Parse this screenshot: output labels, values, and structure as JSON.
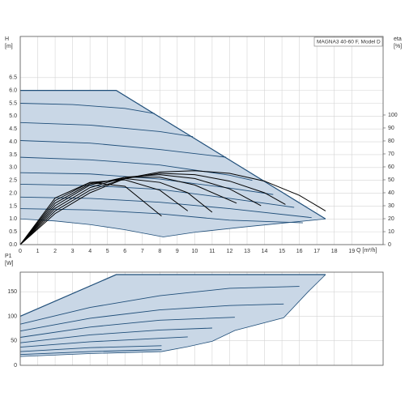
{
  "chart_data": [
    {
      "type": "line",
      "title": "MAGNA3 40-60 F, Model D",
      "y_label": "H",
      "y_unit": "[m]",
      "x_label": "Q [m³/h]",
      "y2_label": "eta",
      "y2_unit": "[%]",
      "xlim": [
        0,
        20.8
      ],
      "ylim": [
        0,
        8.1
      ],
      "y2lim": [
        0,
        160.6
      ],
      "xticks": [
        0,
        1,
        2,
        3,
        4,
        5,
        6,
        7,
        8,
        9,
        10,
        11,
        12,
        13,
        14,
        15,
        16,
        17,
        18,
        19
      ],
      "yticks": [
        {
          "value": 0,
          "label": "0.0"
        },
        {
          "value": 0.5,
          "label": "0.5"
        },
        {
          "value": 1,
          "label": "1.0"
        },
        {
          "value": 1.5,
          "label": "1.5"
        },
        {
          "value": 2,
          "label": "2.0"
        },
        {
          "value": 2.5,
          "label": "2.5"
        },
        {
          "value": 3,
          "label": "3.0"
        },
        {
          "value": 3.5,
          "label": "3.5"
        },
        {
          "value": 4,
          "label": "4.0"
        },
        {
          "value": 4.5,
          "label": "4.5"
        },
        {
          "value": 5,
          "label": "5.0"
        },
        {
          "value": 5.5,
          "label": "5.5"
        },
        {
          "value": 6,
          "label": "6.0"
        },
        {
          "value": 6.5,
          "label": "6.5"
        }
      ],
      "y2ticks": [
        0,
        10,
        20,
        30,
        40,
        50,
        60,
        70,
        80,
        90,
        100
      ],
      "grid": true,
      "xtick_labels": true,
      "fill": "#c9d7e6",
      "line_color": "#1f4e79",
      "area": {
        "upper": {
          "x": [
            0,
            5.5,
            17.5
          ],
          "values": [
            6,
            6,
            1
          ]
        },
        "lower": {
          "x": [
            0,
            2,
            4,
            6,
            8.2,
            10,
            13,
            16,
            17.5
          ],
          "values": [
            1,
            0.92,
            0.78,
            0.58,
            0.3,
            0.48,
            0.7,
            0.9,
            1
          ]
        }
      },
      "series": [
        {
          "color": "#1f4e79",
          "x": [
            0,
            3,
            6,
            7.7
          ],
          "values": [
            5.5,
            5.45,
            5.3,
            5.1
          ]
        },
        {
          "color": "#1f4e79",
          "x": [
            0,
            4,
            8,
            9.9
          ],
          "values": [
            4.75,
            4.65,
            4.4,
            4.2
          ]
        },
        {
          "color": "#1f4e79",
          "x": [
            0,
            4,
            8,
            11.8
          ],
          "values": [
            4.05,
            3.95,
            3.7,
            3.4
          ]
        },
        {
          "color": "#1f4e79",
          "x": [
            0,
            4,
            8,
            12,
            13.3
          ],
          "values": [
            3.4,
            3.3,
            3.1,
            2.7,
            2.5
          ]
        },
        {
          "color": "#1f4e79",
          "x": [
            0,
            4,
            8,
            12,
            14.5
          ],
          "values": [
            2.8,
            2.75,
            2.55,
            2.2,
            1.95
          ]
        },
        {
          "color": "#1f4e79",
          "x": [
            0,
            4,
            8,
            12,
            15.7
          ],
          "values": [
            2.35,
            2.3,
            2.15,
            1.8,
            1.45
          ]
        },
        {
          "color": "#1f4e79",
          "x": [
            0,
            4,
            8,
            12,
            16.7
          ],
          "values": [
            1.85,
            1.8,
            1.65,
            1.4,
            1.05
          ]
        },
        {
          "color": "#1f4e79",
          "x": [
            0,
            4,
            8,
            12,
            16.2
          ],
          "values": [
            1.4,
            1.35,
            1.2,
            0.95,
            0.85
          ]
        },
        {
          "color": "#000000",
          "axis": "y2",
          "x": [
            0,
            2,
            4,
            6,
            8,
            10,
            12,
            14,
            16,
            17.5
          ],
          "values": [
            0,
            24,
            40,
            51,
            56,
            57,
            55,
            49,
            38,
            26
          ]
        },
        {
          "color": "#000000",
          "axis": "y2",
          "x": [
            0,
            2,
            4,
            6,
            8,
            10,
            12,
            14,
            15.2
          ],
          "values": [
            0,
            26,
            42,
            51,
            55,
            54,
            49,
            40,
            31
          ]
        },
        {
          "color": "#000000",
          "axis": "y2",
          "x": [
            0,
            2,
            4,
            6,
            8,
            10,
            12,
            13.8
          ],
          "values": [
            0,
            28,
            44,
            52,
            54,
            51,
            43,
            30
          ]
        },
        {
          "color": "#000000",
          "axis": "y2",
          "x": [
            0,
            2,
            4,
            6,
            8,
            10,
            12.4
          ],
          "values": [
            0,
            30,
            46,
            52,
            52,
            46,
            32
          ]
        },
        {
          "color": "#000000",
          "axis": "y2",
          "x": [
            0,
            2,
            4,
            6,
            8,
            9.6,
            11
          ],
          "values": [
            0,
            32,
            47,
            51,
            48,
            40,
            25
          ]
        },
        {
          "color": "#000000",
          "axis": "y2",
          "x": [
            0,
            2,
            4,
            6,
            8,
            9.6
          ],
          "values": [
            0,
            34,
            48,
            50,
            42,
            26
          ]
        },
        {
          "color": "#000000",
          "axis": "y2",
          "x": [
            0,
            2,
            4,
            6,
            8.1
          ],
          "values": [
            0,
            36,
            48,
            45,
            22
          ]
        }
      ]
    },
    {
      "type": "line",
      "y_label": "P1",
      "y_unit": "[W]",
      "xlim": [
        0,
        20.8
      ],
      "ylim": [
        0,
        190
      ],
      "xticks": [
        0,
        1,
        2,
        3,
        4,
        5,
        6,
        7,
        8,
        9,
        10,
        11,
        12,
        13,
        14,
        15,
        16,
        17,
        18,
        19
      ],
      "yticks": [
        0,
        50,
        100,
        150
      ],
      "grid": true,
      "xtick_labels": false,
      "fill": "#c9d7e6",
      "line_color": "#1f4e79",
      "area": {
        "upper": {
          "x": [
            0,
            5.5,
            17.5
          ],
          "values": [
            100,
            185,
            185
          ]
        },
        "lower": {
          "x": [
            0,
            4,
            8.1,
            9.6,
            11,
            12.3,
            15.1,
            16.5,
            17.5
          ],
          "values": [
            18,
            24,
            28,
            38,
            49,
            71,
            97,
            150,
            185
          ]
        }
      },
      "series": [
        {
          "color": "#1f4e79",
          "x": [
            0,
            4,
            8,
            12,
            16
          ],
          "values": [
            84,
            118,
            142,
            157,
            161
          ]
        },
        {
          "color": "#1f4e79",
          "x": [
            0,
            4,
            8,
            12,
            15.1
          ],
          "values": [
            70,
            96,
            113,
            122,
            125
          ]
        },
        {
          "color": "#1f4e79",
          "x": [
            0,
            4,
            8,
            12.3
          ],
          "values": [
            57,
            78,
            92,
            98
          ]
        },
        {
          "color": "#1f4e79",
          "x": [
            0,
            4,
            8,
            11
          ],
          "values": [
            46,
            62,
            72,
            76
          ]
        },
        {
          "color": "#1f4e79",
          "x": [
            0,
            4,
            8,
            9.6
          ],
          "values": [
            37,
            48,
            55,
            58
          ]
        },
        {
          "color": "#1f4e79",
          "x": [
            0,
            4,
            8.1
          ],
          "values": [
            28,
            36,
            40
          ]
        },
        {
          "color": "#1f4e79",
          "x": [
            0,
            4,
            8.1
          ],
          "values": [
            22,
            28,
            32
          ]
        }
      ]
    }
  ]
}
